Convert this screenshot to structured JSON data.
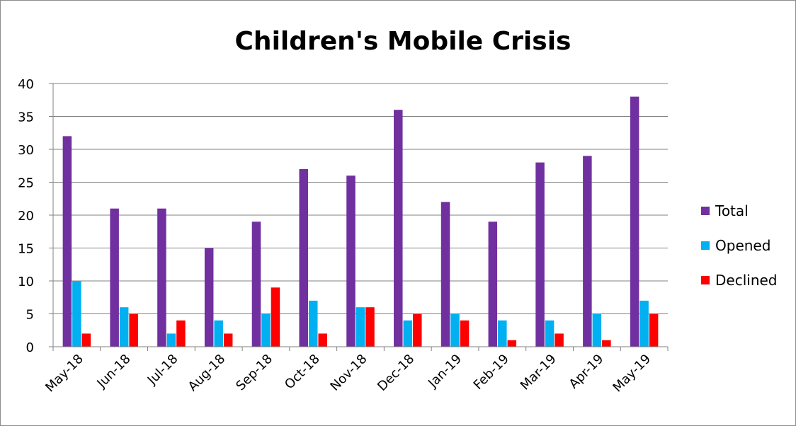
{
  "chart_data": {
    "type": "bar",
    "title": "Children's Mobile Crisis",
    "xlabel": "",
    "ylabel": "",
    "ylim": [
      0,
      40
    ],
    "yticks": [
      0,
      5,
      10,
      15,
      20,
      25,
      30,
      35,
      40
    ],
    "grid": true,
    "legend_position": "right",
    "categories": [
      "May-18",
      "Jun-18",
      "Jul-18",
      "Aug-18",
      "Sep-18",
      "Oct-18",
      "Nov-18",
      "Dec-18",
      "Jan-19",
      "Feb-19",
      "Mar-19",
      "Apr-19",
      "May-19"
    ],
    "series": [
      {
        "name": "Total",
        "color": "#7030a0",
        "values": [
          32,
          21,
          21,
          15,
          19,
          27,
          26,
          36,
          22,
          19,
          28,
          29,
          38
        ]
      },
      {
        "name": "Opened",
        "color": "#00b0f0",
        "values": [
          10,
          6,
          2,
          4,
          5,
          7,
          6,
          4,
          5,
          4,
          4,
          5,
          7
        ]
      },
      {
        "name": "Declined",
        "color": "#ff0000",
        "values": [
          2,
          5,
          4,
          2,
          9,
          2,
          6,
          5,
          4,
          1,
          2,
          1,
          5
        ]
      }
    ]
  }
}
